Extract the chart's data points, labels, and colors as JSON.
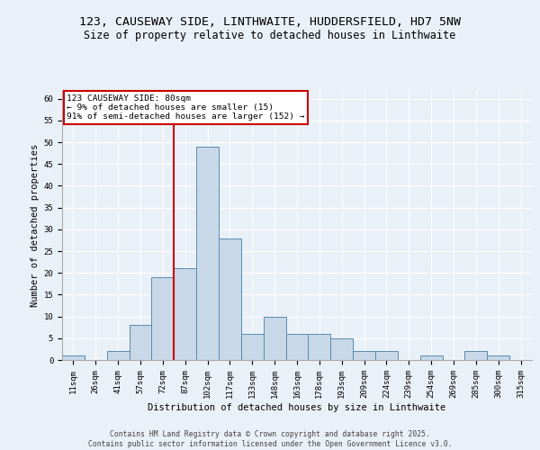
{
  "title_line1": "123, CAUSEWAY SIDE, LINTHWAITE, HUDDERSFIELD, HD7 5NW",
  "title_line2": "Size of property relative to detached houses in Linthwaite",
  "xlabel": "Distribution of detached houses by size in Linthwaite",
  "ylabel": "Number of detached properties",
  "footer": "Contains HM Land Registry data © Crown copyright and database right 2025.\nContains public sector information licensed under the Open Government Licence v3.0.",
  "bin_labels": [
    "11sqm",
    "26sqm",
    "41sqm",
    "57sqm",
    "72sqm",
    "87sqm",
    "102sqm",
    "117sqm",
    "133sqm",
    "148sqm",
    "163sqm",
    "178sqm",
    "193sqm",
    "209sqm",
    "224sqm",
    "239sqm",
    "254sqm",
    "269sqm",
    "285sqm",
    "300sqm",
    "315sqm"
  ],
  "bar_heights": [
    1,
    0,
    2,
    8,
    19,
    21,
    49,
    28,
    6,
    10,
    6,
    6,
    5,
    2,
    2,
    0,
    1,
    0,
    2,
    1,
    0
  ],
  "bar_color": "#c8d8e8",
  "bar_edge_color": "#5a8ab0",
  "bar_edge_width": 0.7,
  "reference_line_color": "#cc0000",
  "annotation_text": "123 CAUSEWAY SIDE: 80sqm\n← 9% of detached houses are smaller (15)\n91% of semi-detached houses are larger (152) →",
  "annotation_box_color": "#ffffff",
  "annotation_box_edge_color": "#cc0000",
  "ylim": [
    0,
    62
  ],
  "yticks": [
    0,
    5,
    10,
    15,
    20,
    25,
    30,
    35,
    40,
    45,
    50,
    55,
    60
  ],
  "bg_color": "#eaf0f8",
  "plot_bg_color": "#eaf0f8",
  "grid_color": "#ffffff",
  "title_fontsize": 9.5,
  "subtitle_fontsize": 8.5,
  "axis_label_fontsize": 7.5,
  "tick_fontsize": 6.5,
  "annotation_fontsize": 6.8,
  "footer_fontsize": 5.8
}
